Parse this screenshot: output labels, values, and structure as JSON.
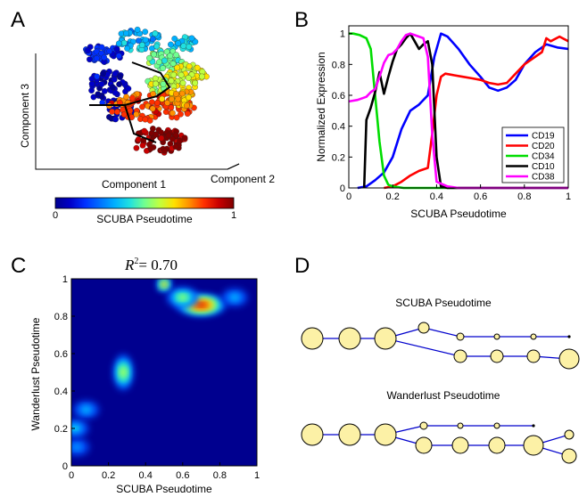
{
  "panels": {
    "a": {
      "letter": "A",
      "xlabel": "Component 1",
      "ylabel": "Component 3",
      "zlabel": "Component 2",
      "colorbar": {
        "label": "SCUBA Pseudotime",
        "min_label": "0",
        "max_label": "1",
        "colors": [
          "#00008f",
          "#0000c8",
          "#0030ff",
          "#0070ff",
          "#00b0ff",
          "#20e0e0",
          "#70ff90",
          "#c0ff40",
          "#ffe000",
          "#ff9000",
          "#ff3000",
          "#c80000",
          "#800000"
        ]
      }
    },
    "b": {
      "letter": "B",
      "xlabel": "SCUBA Pseudotime",
      "ylabel": "Normalized Expression"
    },
    "c": {
      "letter": "C",
      "xlabel": "SCUBA Pseudotime",
      "ylabel": "Wanderlust Pseudotime",
      "r2_symbol": "R",
      "r2_exp": "2",
      "r2_value": "= 0.70"
    },
    "d": {
      "letter": "D",
      "tree1_title": "SCUBA Pseudotime",
      "tree2_title": "Wanderlust Pseudotime",
      "node_fill": "#fcf1a6",
      "edge_color": "#0000cc"
    }
  },
  "chart_data": [
    {
      "type": "scatter",
      "panel": "A",
      "title": "",
      "xlabel": "Component 1",
      "ylabel": "Component 3",
      "zlabel": "Component 2",
      "color_scale": "SCUBA Pseudotime",
      "color_range": [
        0,
        1
      ]
    },
    {
      "type": "line",
      "panel": "B",
      "title": "",
      "xlabel": "SCUBA Pseudotime",
      "ylabel": "Normalized Expression",
      "xlim": [
        0,
        1
      ],
      "ylim": [
        0,
        1.05
      ],
      "xticks": [
        "0",
        "0.2",
        "0.4",
        "0.6",
        "0.8",
        "1"
      ],
      "yticks": [
        "0",
        "0.2",
        "0.4",
        "0.6",
        "0.8",
        "1"
      ],
      "legend_position": "bottom-right",
      "series": [
        {
          "name": "CD19",
          "color": "#0000ff",
          "x": [
            0.0,
            0.04,
            0.08,
            0.12,
            0.16,
            0.2,
            0.24,
            0.28,
            0.32,
            0.36,
            0.39,
            0.42,
            0.45,
            0.5,
            0.55,
            0.6,
            0.64,
            0.68,
            0.72,
            0.76,
            0.8,
            0.85,
            0.9,
            0.95,
            1.0
          ],
          "y": [
            null,
            0.0,
            0.01,
            0.05,
            0.1,
            0.2,
            0.38,
            0.5,
            0.54,
            0.6,
            0.85,
            1.0,
            0.98,
            0.9,
            0.8,
            0.72,
            0.65,
            0.63,
            0.65,
            0.7,
            0.8,
            0.88,
            0.93,
            0.91,
            0.9
          ]
        },
        {
          "name": "CD20",
          "color": "#ff0000",
          "x": [
            0.0,
            0.16,
            0.2,
            0.24,
            0.28,
            0.32,
            0.36,
            0.38,
            0.4,
            0.42,
            0.44,
            0.48,
            0.52,
            0.56,
            0.6,
            0.64,
            0.68,
            0.72,
            0.76,
            0.8,
            0.84,
            0.88,
            0.9,
            0.92,
            0.96,
            1.0
          ],
          "y": [
            null,
            0.0,
            0.01,
            0.04,
            0.08,
            0.11,
            0.13,
            0.35,
            0.6,
            0.72,
            0.74,
            0.73,
            0.72,
            0.71,
            0.7,
            0.68,
            0.67,
            0.68,
            0.74,
            0.8,
            0.84,
            0.88,
            0.97,
            0.95,
            0.98,
            0.95
          ]
        },
        {
          "name": "CD34",
          "color": "#00dd00",
          "x": [
            0.0,
            0.02,
            0.05,
            0.08,
            0.1,
            0.12,
            0.14,
            0.16,
            0.18,
            0.2,
            0.25,
            0.3,
            0.35,
            0.4,
            0.5,
            0.6,
            0.7,
            0.8,
            0.9,
            1.0
          ],
          "y": [
            1.0,
            1.0,
            0.99,
            0.97,
            0.9,
            0.6,
            0.3,
            0.08,
            0.02,
            0.01,
            0.0,
            0.0,
            0.0,
            0.0,
            0.0,
            0.0,
            0.0,
            0.0,
            0.0,
            0.0
          ]
        },
        {
          "name": "CD10",
          "color": "#000000",
          "x": [
            0.07,
            0.08,
            0.1,
            0.12,
            0.14,
            0.16,
            0.18,
            0.2,
            0.22,
            0.24,
            0.26,
            0.28,
            0.3,
            0.32,
            0.34,
            0.36,
            0.38,
            0.4,
            0.42,
            0.45,
            0.5,
            0.6,
            0.7,
            0.8,
            0.9,
            1.0
          ],
          "y": [
            0.0,
            0.44,
            0.52,
            0.62,
            0.75,
            0.61,
            0.72,
            0.82,
            0.9,
            0.93,
            0.97,
            1.0,
            0.95,
            0.9,
            0.93,
            0.95,
            0.8,
            0.2,
            0.01,
            0.0,
            0.0,
            0.0,
            0.0,
            0.0,
            0.0,
            0.0
          ]
        },
        {
          "name": "CD38",
          "color": "#ff00ff",
          "x": [
            0.0,
            0.04,
            0.08,
            0.1,
            0.12,
            0.14,
            0.16,
            0.18,
            0.2,
            0.22,
            0.24,
            0.26,
            0.28,
            0.3,
            0.32,
            0.34,
            0.36,
            0.38,
            0.4,
            0.45,
            0.5,
            0.6,
            0.7,
            0.8,
            0.9,
            1.0
          ],
          "y": [
            0.56,
            0.57,
            0.59,
            0.62,
            0.64,
            0.72,
            0.81,
            0.86,
            0.87,
            0.9,
            0.95,
            0.99,
            1.0,
            0.99,
            0.98,
            0.97,
            0.85,
            0.35,
            0.04,
            0.01,
            0.0,
            0.0,
            0.0,
            0.0,
            0.0,
            0.0
          ]
        }
      ]
    },
    {
      "type": "heatmap",
      "panel": "C",
      "title": "R^2 = 0.70",
      "xlabel": "SCUBA Pseudotime",
      "ylabel": "Wanderlust Pseudotime",
      "xlim": [
        0,
        1
      ],
      "ylim": [
        0,
        1
      ],
      "xticks": [
        "0",
        "0.2",
        "0.4",
        "0.6",
        "0.8",
        "1"
      ],
      "yticks": [
        "0",
        "0.2",
        "0.4",
        "0.6",
        "0.8",
        "1"
      ],
      "density_peaks": [
        {
          "x": 0.7,
          "y": 0.86,
          "value": 1.0
        },
        {
          "x": 0.5,
          "y": 0.97,
          "value": 0.8
        },
        {
          "x": 0.6,
          "y": 0.9,
          "value": 0.55
        },
        {
          "x": 0.28,
          "y": 0.5,
          "value": 0.6
        },
        {
          "x": 0.88,
          "y": 0.9,
          "value": 0.3
        },
        {
          "x": 0.08,
          "y": 0.3,
          "value": 0.3
        },
        {
          "x": 0.02,
          "y": 0.2,
          "value": 0.35
        },
        {
          "x": 0.03,
          "y": 0.1,
          "value": 0.25
        }
      ]
    }
  ]
}
